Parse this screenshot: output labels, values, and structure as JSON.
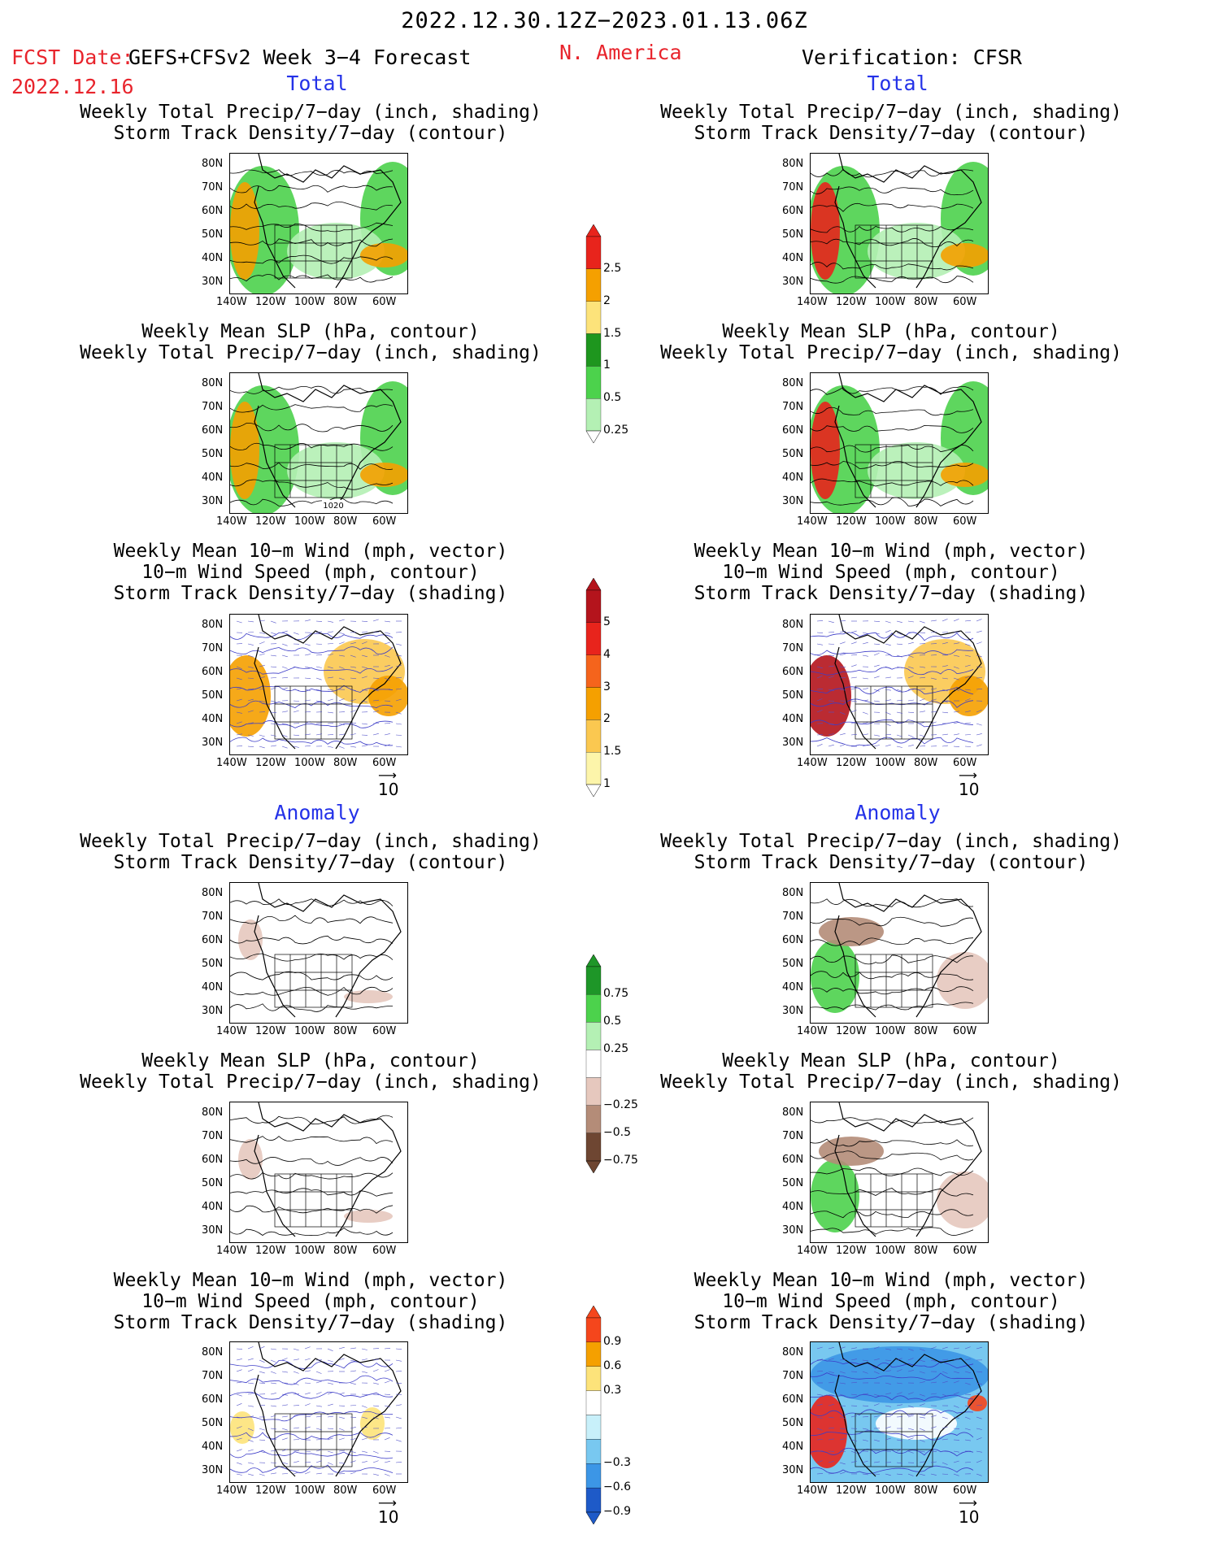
{
  "header": {
    "period": "2022.12.30.12Z−2023.01.13.06Z",
    "fcst_label": "FCST Date:",
    "fcst_date": "2022.12.16",
    "source": "GEFS+CFSv2 Week 3−4 Forecast",
    "region": "N. America",
    "verification": "Verification: CFSR"
  },
  "sections": {
    "total": "Total",
    "anomaly": "Anomaly"
  },
  "panel_titles": {
    "precip_storm": [
      "Weekly Total Precip/7−day (inch, shading)",
      "Storm Track Density/7−day (contour)"
    ],
    "slp_precip": [
      "Weekly Mean SLP (hPa, contour)",
      "Weekly Total Precip/7−day (inch, shading)"
    ],
    "wind_storm": [
      "Weekly Mean 10−m Wind (mph, vector)",
      "10−m Wind Speed (mph, contour)",
      "Storm Track Density/7−day (shading)"
    ]
  },
  "axes": {
    "lat_labels": [
      "80N",
      "70N",
      "60N",
      "50N",
      "40N",
      "30N"
    ],
    "lon_labels": [
      "140W",
      "120W",
      "100W",
      "80W",
      "60W"
    ]
  },
  "vector_ref": "10",
  "contour_label": "1020",
  "colorbars": [
    {
      "labels": [
        "2.5",
        "2",
        "1.5",
        "1",
        "0.5",
        "0.25"
      ],
      "colors": [
        "#e8241c",
        "#f5a000",
        "#fde37a",
        "#1e961e",
        "#4cd24c",
        "#b4f0b4"
      ]
    },
    {
      "labels": [
        "5",
        "4",
        "3",
        "2",
        "1.5",
        "1"
      ],
      "colors": [
        "#b4141c",
        "#e8241c",
        "#f5641c",
        "#f5a000",
        "#fbc850",
        "#fdf5aa"
      ]
    },
    {
      "labels": [
        "0.75",
        "0.5",
        "0.25",
        "−0.25",
        "−0.5",
        "−0.75"
      ],
      "colors": [
        "#1e9628",
        "#4cd24c",
        "#b4f0b4",
        "#ffffff",
        "#e6c8be",
        "#b48c78",
        "#6e4632"
      ]
    },
    {
      "labels": [
        "0.9",
        "0.6",
        "0.3",
        "−0.3",
        "−0.6",
        "−0.9"
      ],
      "colors": [
        "#f5461c",
        "#f5a000",
        "#fde37a",
        "#ffffff",
        "#c8f0fa",
        "#78c8f0",
        "#3c96e6",
        "#1e5ac8"
      ]
    }
  ]
}
